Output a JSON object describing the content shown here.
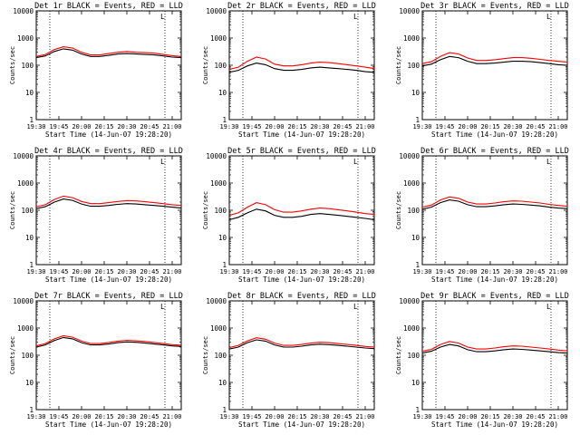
{
  "figure": {
    "legend_text": "BLACK = Events, RED = LLD",
    "ylabel": "Counts/sec",
    "xlabel": "Start Time (14-Jun-07 19:28:20)",
    "colors": {
      "events": "#000000",
      "lld": "#ff0000",
      "background": "#ffffff"
    }
  },
  "chart_data": [
    {
      "type": "line",
      "title": "Det 1r BLACK = Events, RED = LLD",
      "xlabel": "Start Time (14-Jun-07 19:28:20)",
      "ylabel": "Counts/sec",
      "yscale": "log",
      "ylim": [
        1,
        10000
      ],
      "xlim": [
        0,
        160
      ],
      "x_tick_labels": [
        "19:30",
        "19:45",
        "20:00",
        "20:15",
        "20:30",
        "20:45",
        "21:00"
      ],
      "y_tick_labels": [
        "1",
        "10",
        "100",
        "1000",
        "10000"
      ],
      "marker_lines_x": [
        15,
        142
      ],
      "marker_label": "L",
      "marker_label_x": 137,
      "x": [
        0,
        10,
        20,
        30,
        40,
        50,
        60,
        70,
        80,
        90,
        100,
        110,
        120,
        130,
        140,
        150,
        160
      ],
      "series": [
        {
          "name": "Events",
          "color": "#000000",
          "values": [
            190,
            220,
            320,
            400,
            360,
            260,
            210,
            210,
            230,
            260,
            270,
            260,
            250,
            240,
            220,
            200,
            190
          ]
        },
        {
          "name": "LLD",
          "color": "#ff0000",
          "values": [
            210,
            250,
            380,
            480,
            430,
            300,
            240,
            240,
            270,
            300,
            320,
            300,
            290,
            280,
            250,
            225,
            210
          ]
        }
      ]
    },
    {
      "type": "line",
      "title": "Det 2r BLACK = Events, RED = LLD",
      "xlabel": "Start Time (14-Jun-07 19:28:20)",
      "ylabel": "Counts/sec",
      "yscale": "log",
      "ylim": [
        1,
        10000
      ],
      "xlim": [
        0,
        160
      ],
      "x_tick_labels": [
        "19:30",
        "19:45",
        "20:00",
        "20:15",
        "20:30",
        "20:45",
        "21:00"
      ],
      "y_tick_labels": [
        "1",
        "10",
        "100",
        "1000",
        "10000"
      ],
      "marker_lines_x": [
        15,
        142
      ],
      "marker_label": "L",
      "marker_label_x": 137,
      "x": [
        0,
        10,
        20,
        30,
        40,
        50,
        60,
        70,
        80,
        90,
        100,
        110,
        120,
        130,
        140,
        150,
        160
      ],
      "series": [
        {
          "name": "Events",
          "color": "#000000",
          "values": [
            55,
            65,
            95,
            120,
            105,
            75,
            65,
            65,
            70,
            80,
            85,
            80,
            75,
            70,
            65,
            58,
            55
          ]
        },
        {
          "name": "LLD",
          "color": "#ff0000",
          "values": [
            70,
            85,
            140,
            200,
            170,
            110,
            95,
            95,
            105,
            120,
            130,
            125,
            115,
            105,
            95,
            85,
            75
          ]
        }
      ]
    },
    {
      "type": "line",
      "title": "Det 3r BLACK = Events, RED = LLD",
      "xlabel": "Start Time (14-Jun-07 19:28:20)",
      "ylabel": "Counts/sec",
      "yscale": "log",
      "ylim": [
        1,
        10000
      ],
      "xlim": [
        0,
        160
      ],
      "x_tick_labels": [
        "19:30",
        "19:45",
        "20:00",
        "20:15",
        "20:30",
        "20:45",
        "21:00"
      ],
      "y_tick_labels": [
        "1",
        "10",
        "100",
        "1000",
        "10000"
      ],
      "marker_lines_x": [
        15,
        142
      ],
      "marker_label": "L",
      "marker_label_x": 137,
      "x": [
        0,
        10,
        20,
        30,
        40,
        50,
        60,
        70,
        80,
        90,
        100,
        110,
        120,
        130,
        140,
        150,
        160
      ],
      "series": [
        {
          "name": "Events",
          "color": "#000000",
          "values": [
            95,
            110,
            160,
            210,
            190,
            140,
            115,
            115,
            120,
            130,
            140,
            140,
            135,
            125,
            115,
            105,
            100
          ]
        },
        {
          "name": "LLD",
          "color": "#ff0000",
          "values": [
            115,
            135,
            210,
            290,
            260,
            185,
            150,
            150,
            160,
            175,
            190,
            190,
            180,
            165,
            150,
            140,
            130
          ]
        }
      ]
    },
    {
      "type": "line",
      "title": "Det 4r BLACK = Events, RED = LLD",
      "xlabel": "Start Time (14-Jun-07 19:28:20)",
      "ylabel": "Counts/sec",
      "yscale": "log",
      "ylim": [
        1,
        10000
      ],
      "xlim": [
        0,
        160
      ],
      "x_tick_labels": [
        "19:30",
        "19:45",
        "20:00",
        "20:15",
        "20:30",
        "20:45",
        "21:00"
      ],
      "y_tick_labels": [
        "1",
        "10",
        "100",
        "1000",
        "10000"
      ],
      "marker_lines_x": [
        15,
        142
      ],
      "marker_label": "L",
      "marker_label_x": 137,
      "x": [
        0,
        10,
        20,
        30,
        40,
        50,
        60,
        70,
        80,
        90,
        100,
        110,
        120,
        130,
        140,
        150,
        160
      ],
      "series": [
        {
          "name": "Events",
          "color": "#000000",
          "values": [
            115,
            135,
            200,
            260,
            230,
            170,
            140,
            140,
            150,
            165,
            175,
            170,
            160,
            150,
            140,
            130,
            120
          ]
        },
        {
          "name": "LLD",
          "color": "#ff0000",
          "values": [
            135,
            160,
            250,
            330,
            290,
            210,
            175,
            175,
            190,
            210,
            225,
            220,
            205,
            190,
            175,
            160,
            150
          ]
        }
      ]
    },
    {
      "type": "line",
      "title": "Det 5r BLACK = Events, RED = LLD",
      "xlabel": "Start Time (14-Jun-07 19:28:20)",
      "ylabel": "Counts/sec",
      "yscale": "log",
      "ylim": [
        1,
        10000
      ],
      "xlim": [
        0,
        160
      ],
      "x_tick_labels": [
        "19:30",
        "19:45",
        "20:00",
        "20:15",
        "20:30",
        "20:45",
        "21:00"
      ],
      "y_tick_labels": [
        "1",
        "10",
        "100",
        "1000",
        "10000"
      ],
      "marker_lines_x": [
        15,
        142
      ],
      "marker_label": "L",
      "marker_label_x": 137,
      "x": [
        0,
        10,
        20,
        30,
        40,
        50,
        60,
        70,
        80,
        90,
        100,
        110,
        120,
        130,
        140,
        150,
        160
      ],
      "series": [
        {
          "name": "Events",
          "color": "#000000",
          "values": [
            45,
            55,
            80,
            110,
            95,
            65,
            55,
            55,
            60,
            70,
            75,
            70,
            65,
            60,
            55,
            50,
            45
          ]
        },
        {
          "name": "LLD",
          "color": "#ff0000",
          "values": [
            65,
            80,
            130,
            190,
            160,
            105,
            85,
            85,
            95,
            110,
            120,
            115,
            105,
            95,
            85,
            75,
            70
          ]
        }
      ]
    },
    {
      "type": "line",
      "title": "Det 6r BLACK = Events, RED = LLD",
      "xlabel": "Start Time (14-Jun-07 19:28:20)",
      "ylabel": "Counts/sec",
      "yscale": "log",
      "ylim": [
        1,
        10000
      ],
      "xlim": [
        0,
        160
      ],
      "x_tick_labels": [
        "19:30",
        "19:45",
        "20:00",
        "20:15",
        "20:30",
        "20:45",
        "21:00"
      ],
      "y_tick_labels": [
        "1",
        "10",
        "100",
        "1000",
        "10000"
      ],
      "marker_lines_x": [
        15,
        142
      ],
      "marker_label": "L",
      "marker_label_x": 137,
      "x": [
        0,
        10,
        20,
        30,
        40,
        50,
        60,
        70,
        80,
        90,
        100,
        110,
        120,
        130,
        140,
        150,
        160
      ],
      "series": [
        {
          "name": "Events",
          "color": "#000000",
          "values": [
            110,
            130,
            190,
            240,
            215,
            160,
            135,
            135,
            145,
            160,
            170,
            165,
            155,
            145,
            130,
            120,
            115
          ]
        },
        {
          "name": "LLD",
          "color": "#ff0000",
          "values": [
            130,
            155,
            240,
            310,
            275,
            200,
            170,
            170,
            185,
            205,
            220,
            215,
            200,
            185,
            165,
            150,
            140
          ]
        }
      ]
    },
    {
      "type": "line",
      "title": "Det 7r BLACK = Events, RED = LLD",
      "xlabel": "Start Time (14-Jun-07 19:28:20)",
      "ylabel": "Counts/sec",
      "yscale": "log",
      "ylim": [
        1,
        10000
      ],
      "xlim": [
        0,
        160
      ],
      "x_tick_labels": [
        "19:30",
        "19:45",
        "20:00",
        "20:15",
        "20:30",
        "20:45",
        "21:00"
      ],
      "y_tick_labels": [
        "1",
        "10",
        "100",
        "1000",
        "10000"
      ],
      "marker_lines_x": [
        15,
        142
      ],
      "marker_label": "L",
      "marker_label_x": 137,
      "x": [
        0,
        10,
        20,
        30,
        40,
        50,
        60,
        70,
        80,
        90,
        100,
        110,
        120,
        130,
        140,
        150,
        160
      ],
      "series": [
        {
          "name": "Events",
          "color": "#000000",
          "values": [
            200,
            240,
            350,
            450,
            400,
            290,
            240,
            240,
            260,
            290,
            310,
            300,
            280,
            260,
            240,
            220,
            210
          ]
        },
        {
          "name": "LLD",
          "color": "#ff0000",
          "values": [
            220,
            270,
            400,
            520,
            460,
            330,
            270,
            270,
            295,
            330,
            355,
            340,
            320,
            295,
            270,
            245,
            235
          ]
        }
      ]
    },
    {
      "type": "line",
      "title": "Det 8r BLACK = Events, RED = LLD",
      "xlabel": "Start Time (14-Jun-07 19:28:20)",
      "ylabel": "Counts/sec",
      "yscale": "log",
      "ylim": [
        1,
        10000
      ],
      "xlim": [
        0,
        160
      ],
      "x_tick_labels": [
        "19:30",
        "19:45",
        "20:00",
        "20:15",
        "20:30",
        "20:45",
        "21:00"
      ],
      "y_tick_labels": [
        "1",
        "10",
        "100",
        "1000",
        "10000"
      ],
      "marker_lines_x": [
        15,
        142
      ],
      "marker_label": "L",
      "marker_label_x": 137,
      "x": [
        0,
        10,
        20,
        30,
        40,
        50,
        60,
        70,
        80,
        90,
        100,
        110,
        120,
        130,
        140,
        150,
        160
      ],
      "series": [
        {
          "name": "Events",
          "color": "#000000",
          "values": [
            170,
            200,
            290,
            370,
            330,
            240,
            200,
            200,
            215,
            240,
            255,
            245,
            230,
            215,
            200,
            185,
            175
          ]
        },
        {
          "name": "LLD",
          "color": "#ff0000",
          "values": [
            190,
            230,
            340,
            440,
            390,
            280,
            230,
            230,
            250,
            280,
            300,
            290,
            270,
            250,
            230,
            210,
            200
          ]
        }
      ]
    },
    {
      "type": "line",
      "title": "Det 9r BLACK = Events, RED = LLD",
      "xlabel": "Start Time (14-Jun-07 19:28:20)",
      "ylabel": "Counts/sec",
      "yscale": "log",
      "ylim": [
        1,
        10000
      ],
      "xlim": [
        0,
        160
      ],
      "x_tick_labels": [
        "19:30",
        "19:45",
        "20:00",
        "20:15",
        "20:30",
        "20:45",
        "21:00"
      ],
      "y_tick_labels": [
        "1",
        "10",
        "100",
        "1000",
        "10000"
      ],
      "marker_lines_x": [
        15,
        142
      ],
      "marker_label": "L",
      "marker_label_x": 137,
      "x": [
        0,
        10,
        20,
        30,
        40,
        50,
        60,
        70,
        80,
        90,
        100,
        110,
        120,
        130,
        140,
        150,
        160
      ],
      "series": [
        {
          "name": "Events",
          "color": "#000000",
          "values": [
            120,
            140,
            200,
            250,
            220,
            160,
            135,
            135,
            145,
            160,
            170,
            165,
            155,
            145,
            135,
            125,
            120
          ]
        },
        {
          "name": "LLD",
          "color": "#ff0000",
          "values": [
            140,
            165,
            250,
            320,
            280,
            200,
            170,
            170,
            185,
            205,
            220,
            215,
            200,
            185,
            170,
            155,
            145
          ]
        }
      ]
    }
  ]
}
